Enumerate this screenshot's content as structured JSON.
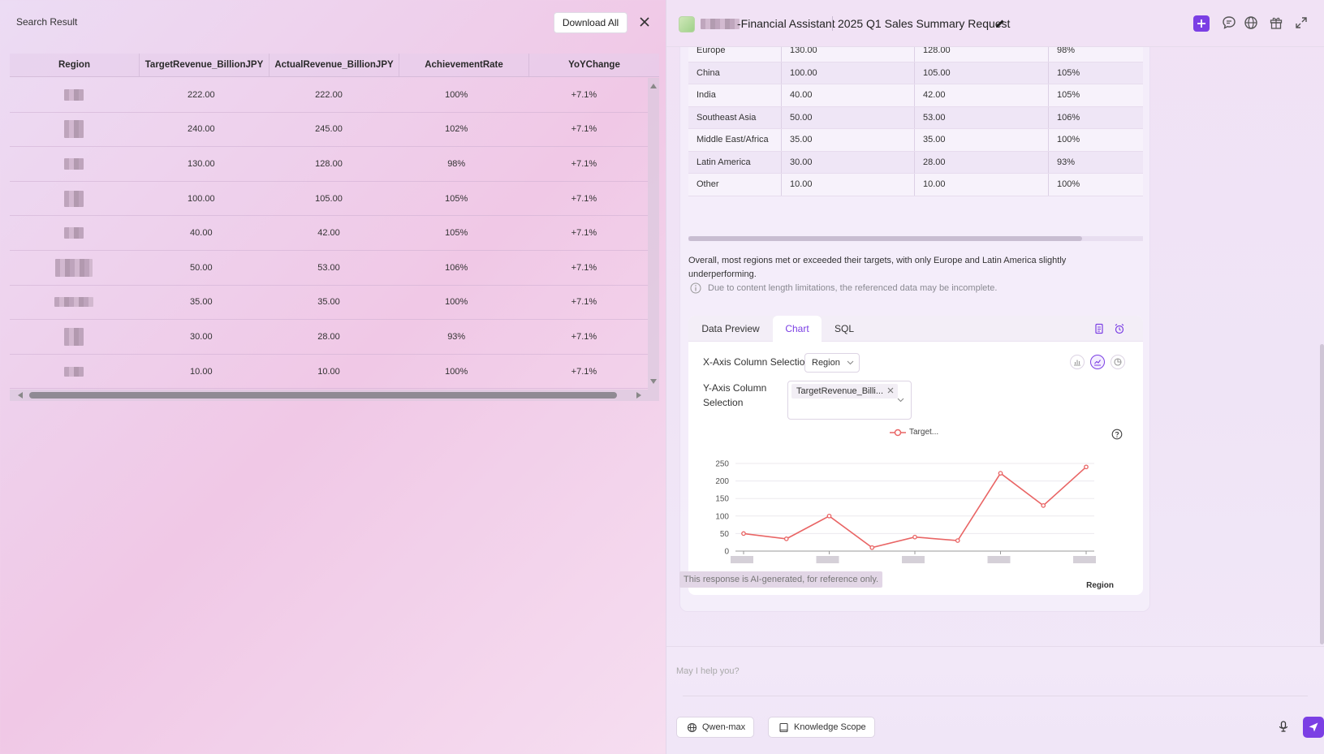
{
  "left_pane": {
    "title": "Search Result",
    "download_label": "Download All",
    "columns": [
      "Region",
      "TargetRevenue_BillionJPY",
      "ActualRevenue_BillionJPY",
      "AchievementRate",
      "YoYChange"
    ],
    "rows": [
      {
        "target": "222.00",
        "actual": "222.00",
        "rate": "100%",
        "yoy": "+7.1%"
      },
      {
        "target": "240.00",
        "actual": "245.00",
        "rate": "102%",
        "yoy": "+7.1%"
      },
      {
        "target": "130.00",
        "actual": "128.00",
        "rate": "98%",
        "yoy": "+7.1%"
      },
      {
        "target": "100.00",
        "actual": "105.00",
        "rate": "105%",
        "yoy": "+7.1%"
      },
      {
        "target": "40.00",
        "actual": "42.00",
        "rate": "105%",
        "yoy": "+7.1%"
      },
      {
        "target": "50.00",
        "actual": "53.00",
        "rate": "106%",
        "yoy": "+7.1%"
      },
      {
        "target": "35.00",
        "actual": "35.00",
        "rate": "100%",
        "yoy": "+7.1%"
      },
      {
        "target": "30.00",
        "actual": "28.00",
        "rate": "93%",
        "yoy": "+7.1%"
      },
      {
        "target": "10.00",
        "actual": "10.00",
        "rate": "100%",
        "yoy": "+7.1%"
      }
    ]
  },
  "header": {
    "app_name": "-Financial Assistant",
    "chat_title": "2025 Q1 Sales Summary Request"
  },
  "message": {
    "table_rows": [
      {
        "region": "Europe",
        "target": "130.00",
        "actual": "128.00",
        "rate": "98%"
      },
      {
        "region": "China",
        "target": "100.00",
        "actual": "105.00",
        "rate": "105%"
      },
      {
        "region": "India",
        "target": "40.00",
        "actual": "42.00",
        "rate": "105%"
      },
      {
        "region": "Southeast Asia",
        "target": "50.00",
        "actual": "53.00",
        "rate": "106%"
      },
      {
        "region": "Middle East/Africa",
        "target": "35.00",
        "actual": "35.00",
        "rate": "100%"
      },
      {
        "region": "Latin America",
        "target": "30.00",
        "actual": "28.00",
        "rate": "93%"
      },
      {
        "region": "Other",
        "target": "10.00",
        "actual": "10.00",
        "rate": "100%"
      }
    ],
    "summary": "Overall, most regions met or exceeded their targets, with only Europe and Latin America slightly underperforming.",
    "notice": "Due to content length limitations, the referenced data may be incomplete."
  },
  "tools": {
    "tabs": [
      "Data Preview",
      "Chart",
      "SQL"
    ],
    "x_axis_label": "X-Axis Column Selection",
    "x_axis_value": "Region",
    "y_axis_label": "Y-Axis Column Selection",
    "y_axis_chip": "TargetRevenue_Billi...",
    "legend_label": "Target..."
  },
  "chart_data": {
    "type": "line",
    "series": [
      {
        "name": "Target...",
        "values": [
          50,
          35,
          100,
          10,
          40,
          30,
          222,
          130,
          240
        ]
      }
    ],
    "y_ticks": [
      "0",
      "50",
      "100",
      "150",
      "200",
      "250"
    ],
    "ylim": [
      0,
      250
    ],
    "xlabel": "Region",
    "ylabel": "",
    "line_color": "#e96565"
  },
  "footer": {
    "disclaimer": "This response is AI-generated, for reference only.",
    "input_placeholder": "May I help you?",
    "model_label": "Qwen-max",
    "knowledge_label": "Knowledge Scope"
  },
  "colors": {
    "accent": "#7b3fe4",
    "chart_line": "#e96565"
  }
}
